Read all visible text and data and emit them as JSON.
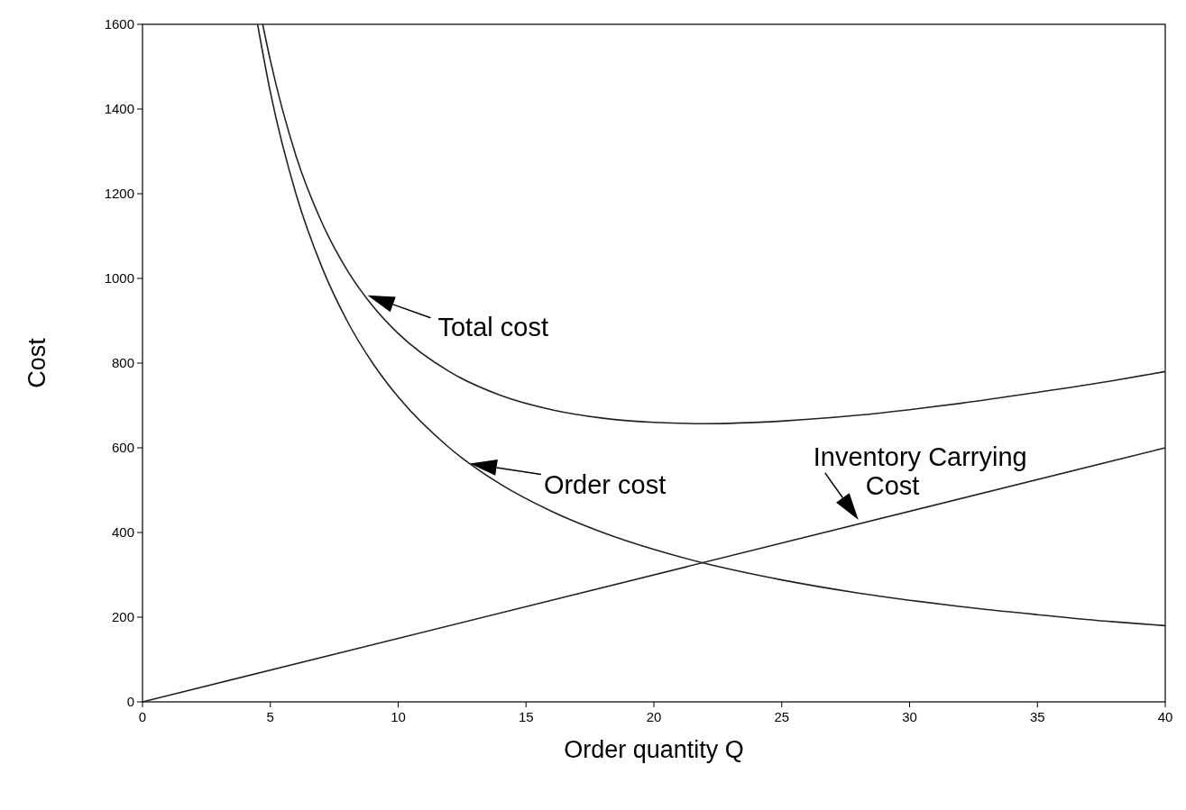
{
  "chart_data": {
    "type": "line",
    "xlabel": "Order quantity Q",
    "ylabel": "Cost",
    "xlim": [
      0,
      40
    ],
    "ylim": [
      0,
      1600
    ],
    "xticks": [
      0,
      5,
      10,
      15,
      20,
      25,
      30,
      35,
      40
    ],
    "yticks": [
      0,
      200,
      400,
      600,
      800,
      1000,
      1200,
      1400,
      1600
    ],
    "grid": false,
    "marker": "none",
    "line_style": "solid",
    "series": [
      {
        "color": "#222222",
        "x": [
          4.7,
          5,
          6,
          7,
          8,
          9,
          10,
          12,
          14,
          16,
          18,
          20,
          22,
          25,
          28,
          30,
          32,
          35,
          38,
          40
        ],
        "values": [
          1600,
          1515,
          1290,
          1134,
          1020,
          935,
          870,
          780,
          724,
          690,
          670,
          660,
          657,
          663,
          677,
          690,
          705,
          731,
          759,
          780
        ]
      },
      {
        "color": "#222222",
        "x": [
          4.5,
          5,
          6,
          7,
          8,
          9,
          10,
          12,
          14,
          16,
          18,
          20,
          22,
          25,
          28,
          30,
          32,
          35,
          38,
          40
        ],
        "values": [
          1600,
          1440,
          1200,
          1029,
          900,
          800,
          720,
          600,
          514,
          450,
          400,
          360,
          327,
          288,
          257,
          240,
          225,
          206,
          189,
          180
        ]
      },
      {
        "color": "#222222",
        "x": [
          0,
          40
        ],
        "values": [
          0,
          600
        ]
      }
    ],
    "annotations": [
      {
        "text": "Total cost",
        "x": 8.8,
        "y": 960
      },
      {
        "text": "Order cost",
        "x": 12.8,
        "y": 563
      },
      {
        "text": "Inventory Carrying\nCost",
        "x": 28,
        "y": 430
      }
    ]
  }
}
